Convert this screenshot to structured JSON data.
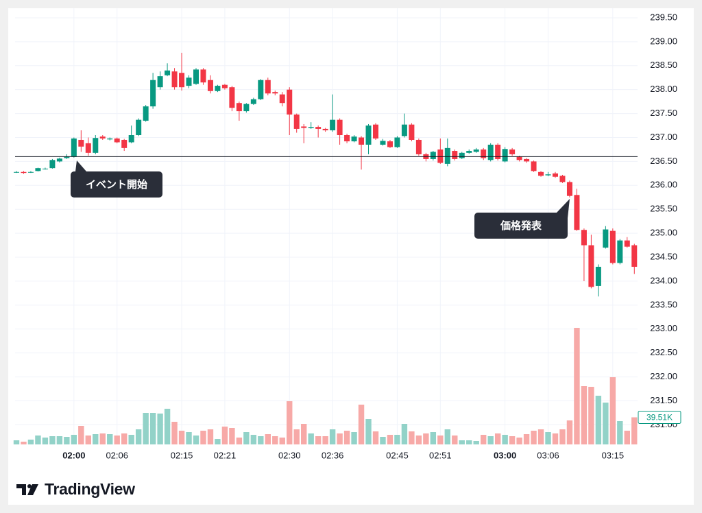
{
  "chart_data": {
    "type": "candlestick",
    "categories": [
      null,
      null,
      null,
      null,
      null,
      null,
      null,
      null,
      "02:00",
      null,
      null,
      null,
      null,
      null,
      "02:06",
      null,
      null,
      null,
      null,
      null,
      null,
      null,
      null,
      "02:15",
      null,
      null,
      null,
      null,
      null,
      "02:21",
      null,
      null,
      null,
      null,
      null,
      null,
      null,
      null,
      "02:30",
      null,
      null,
      null,
      null,
      null,
      "02:36",
      null,
      null,
      null,
      null,
      null,
      null,
      null,
      null,
      "02:45",
      null,
      null,
      null,
      null,
      null,
      "02:51",
      null,
      null,
      null,
      null,
      null,
      null,
      null,
      null,
      "03:00",
      null,
      null,
      null,
      null,
      null,
      "03:06",
      null,
      null,
      null,
      null,
      null,
      null,
      null,
      null,
      "03:15",
      null,
      null,
      null
    ],
    "open": [
      236.27,
      236.28,
      236.27,
      236.3,
      236.35,
      236.36,
      236.5,
      236.57,
      236.6,
      236.95,
      236.88,
      236.68,
      237.02,
      236.96,
      236.98,
      236.95,
      236.9,
      237.05,
      237.35,
      237.65,
      238.05,
      238.3,
      238.38,
      238.35,
      238.08,
      238.12,
      238.42,
      238.2,
      237.97,
      238.1,
      238.05,
      237.72,
      237.55,
      237.7,
      237.8,
      238.2,
      237.95,
      237.9,
      238.0,
      237.48,
      237.23,
      237.2,
      237.22,
      237.18,
      237.15,
      237.37,
      237.05,
      236.92,
      237.0,
      236.85,
      237.27,
      236.85,
      236.92,
      236.8,
      237.03,
      237.27,
      236.95,
      236.65,
      236.55,
      236.75,
      236.45,
      236.72,
      236.57,
      236.68,
      236.7,
      236.75,
      236.53,
      236.85,
      236.5,
      236.75,
      236.6,
      236.55,
      236.5,
      236.28,
      236.21,
      236.25,
      236.2,
      236.07,
      235.8,
      235.07,
      234.75,
      233.9,
      234.7,
      235.05,
      234.38,
      234.85,
      234.75
    ],
    "high": [
      236.3,
      236.3,
      236.3,
      236.37,
      236.37,
      236.55,
      236.58,
      236.65,
      237.0,
      237.15,
      237.0,
      237.05,
      237.05,
      237.0,
      237.0,
      236.97,
      237.25,
      237.4,
      237.68,
      238.35,
      238.38,
      238.55,
      238.45,
      238.77,
      238.3,
      238.45,
      238.45,
      238.3,
      238.1,
      238.12,
      238.08,
      237.75,
      237.72,
      237.83,
      238.22,
      238.25,
      237.98,
      237.95,
      238.05,
      237.5,
      237.28,
      237.32,
      237.25,
      237.2,
      237.9,
      237.4,
      237.08,
      237.05,
      237.03,
      237.28,
      237.3,
      236.97,
      236.95,
      237.03,
      237.5,
      237.3,
      236.98,
      236.68,
      236.72,
      236.98,
      236.98,
      236.75,
      236.7,
      236.75,
      236.78,
      236.78,
      236.88,
      236.88,
      236.8,
      236.78,
      236.62,
      236.57,
      236.52,
      236.3,
      236.28,
      236.28,
      236.22,
      236.1,
      235.93,
      235.1,
      234.97,
      234.35,
      235.15,
      235.1,
      234.88,
      234.92,
      234.78
    ],
    "low": [
      236.26,
      236.24,
      236.26,
      236.29,
      236.33,
      236.35,
      236.48,
      236.55,
      236.58,
      236.7,
      236.62,
      236.65,
      236.95,
      236.94,
      236.88,
      236.72,
      236.88,
      237.03,
      237.33,
      237.6,
      238.0,
      238.28,
      238.0,
      237.98,
      238.03,
      238.1,
      238.1,
      237.92,
      237.95,
      238.0,
      237.55,
      237.35,
      237.52,
      237.68,
      237.78,
      237.88,
      237.88,
      237.65,
      237.05,
      237.1,
      236.88,
      237.18,
      237.0,
      237.12,
      237.12,
      236.85,
      236.88,
      236.9,
      236.33,
      236.65,
      236.95,
      236.83,
      236.78,
      236.78,
      237.0,
      236.92,
      236.62,
      236.5,
      236.52,
      236.45,
      236.4,
      236.52,
      236.55,
      236.66,
      236.68,
      236.53,
      236.5,
      236.52,
      236.48,
      236.62,
      236.5,
      236.47,
      236.28,
      236.18,
      236.19,
      236.16,
      236.05,
      235.75,
      235.05,
      234.0,
      233.85,
      233.68,
      234.68,
      234.35,
      234.35,
      234.7,
      234.15
    ],
    "close": [
      236.28,
      236.26,
      236.28,
      236.36,
      236.35,
      236.53,
      236.56,
      236.6,
      236.98,
      236.81,
      236.68,
      236.99,
      236.98,
      236.98,
      236.9,
      236.78,
      237.05,
      237.37,
      237.65,
      238.2,
      238.28,
      238.4,
      238.05,
      238.05,
      238.25,
      238.42,
      238.15,
      237.97,
      238.08,
      238.03,
      237.62,
      237.55,
      237.7,
      237.8,
      238.2,
      237.92,
      237.92,
      237.72,
      237.48,
      237.18,
      237.2,
      237.22,
      237.18,
      237.15,
      237.37,
      237.05,
      236.92,
      237.02,
      236.85,
      237.25,
      236.98,
      236.93,
      236.8,
      237.0,
      237.27,
      236.95,
      236.65,
      236.55,
      236.7,
      236.47,
      236.78,
      236.55,
      236.68,
      236.72,
      236.75,
      236.57,
      236.85,
      236.55,
      236.76,
      236.65,
      236.53,
      236.5,
      236.3,
      236.2,
      236.23,
      236.18,
      236.07,
      235.78,
      235.07,
      234.75,
      233.88,
      234.3,
      235.08,
      234.38,
      234.85,
      234.72,
      234.3
    ],
    "volume": [
      6,
      4,
      7,
      13,
      10,
      12,
      12,
      11,
      14,
      27,
      13,
      15,
      16,
      15,
      13,
      16,
      14,
      22,
      46,
      46,
      45,
      52,
      33,
      20,
      18,
      13,
      20,
      22,
      8,
      26,
      24,
      10,
      18,
      14,
      12,
      15,
      12,
      10,
      63,
      22,
      30,
      16,
      12,
      12,
      22,
      16,
      20,
      18,
      58,
      37,
      19,
      11,
      14,
      14,
      30,
      19,
      13,
      16,
      18,
      13,
      22,
      13,
      6,
      6,
      5,
      14,
      12,
      16,
      14,
      12,
      10,
      15,
      20,
      22,
      18,
      16,
      22,
      35,
      170,
      85,
      84,
      71,
      61,
      98,
      34,
      20,
      39.51
    ],
    "volume_last_label": "39.51K",
    "up_color": "#089981",
    "down_color": "#f23645",
    "up_volume_color": "#92d2c8",
    "down_volume_color": "#f7a9a7",
    "ylim": [
      230.59,
      239.7
    ],
    "yticks": [
      {
        "value": 239.5,
        "label": "239.50"
      },
      {
        "value": 239.0,
        "label": "239.00"
      },
      {
        "value": 238.5,
        "label": "238.50"
      },
      {
        "value": 238.0,
        "label": "238.00"
      },
      {
        "value": 237.5,
        "label": "237.50"
      },
      {
        "value": 237.0,
        "label": "237.00"
      },
      {
        "value": 236.5,
        "label": "236.50"
      },
      {
        "value": 236.0,
        "label": "236.00"
      },
      {
        "value": 235.5,
        "label": "235.50"
      },
      {
        "value": 235.0,
        "label": "235.00"
      },
      {
        "value": 234.5,
        "label": "234.50"
      },
      {
        "value": 234.0,
        "label": "234.00"
      },
      {
        "value": 233.5,
        "label": "233.50"
      },
      {
        "value": 233.0,
        "label": "233.00"
      },
      {
        "value": 232.5,
        "label": "232.50"
      },
      {
        "value": 232.0,
        "label": "232.00"
      },
      {
        "value": 231.5,
        "label": "231.50"
      },
      {
        "value": 231.0,
        "label": "231.00"
      }
    ],
    "grid": true,
    "hline": 236.6,
    "annotations": [
      {
        "text": "イベント開始"
      },
      {
        "text": "価格発表"
      }
    ],
    "brand": "TradingView"
  }
}
